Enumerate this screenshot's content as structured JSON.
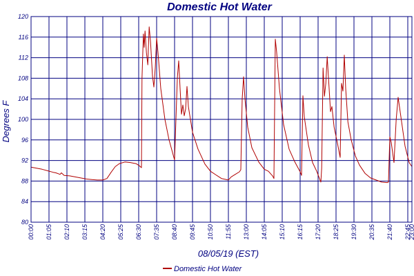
{
  "chart_data": {
    "type": "line",
    "title": "Domestic Hot Water",
    "xlabel": "08/05/19 (EST)",
    "ylabel": "Degrees F",
    "ylim": [
      80,
      120
    ],
    "yticks": [
      "80",
      "84",
      "88",
      "92",
      "96",
      "100",
      "104",
      "108",
      "112",
      "116",
      "120"
    ],
    "xlim_minutes": [
      0,
      1380
    ],
    "xticks": [
      {
        "label": "00:00",
        "minute": 0
      },
      {
        "label": "01:05",
        "minute": 65
      },
      {
        "label": "02:10",
        "minute": 130
      },
      {
        "label": "03:15",
        "minute": 195
      },
      {
        "label": "04:20",
        "minute": 260
      },
      {
        "label": "05:25",
        "minute": 325
      },
      {
        "label": "06:30",
        "minute": 390
      },
      {
        "label": "07:35",
        "minute": 455
      },
      {
        "label": "08:40",
        "minute": 520
      },
      {
        "label": "09:45",
        "minute": 585
      },
      {
        "label": "10:50",
        "minute": 650
      },
      {
        "label": "11:55",
        "minute": 715
      },
      {
        "label": "13:00",
        "minute": 780
      },
      {
        "label": "14:05",
        "minute": 845
      },
      {
        "label": "15:10",
        "minute": 910
      },
      {
        "label": "16:15",
        "minute": 975
      },
      {
        "label": "17:20",
        "minute": 1040
      },
      {
        "label": "18:25",
        "minute": 1105
      },
      {
        "label": "19:30",
        "minute": 1170
      },
      {
        "label": "20:35",
        "minute": 1235
      },
      {
        "label": "21:40",
        "minute": 1300
      },
      {
        "label": "22:45",
        "minute": 1365
      },
      {
        "label": "23:00",
        "minute": 1380
      }
    ],
    "grid": true,
    "legend_position": "bottom-center",
    "series": [
      {
        "name": "Domestic Hot Water",
        "color": "#b00000",
        "points": [
          [
            "00:00",
            90.7
          ],
          [
            "00:20",
            90.5
          ],
          [
            "00:40",
            90.3
          ],
          [
            "01:00",
            90.0
          ],
          [
            "01:20",
            89.7
          ],
          [
            "01:30",
            89.6
          ],
          [
            "01:45",
            89.3
          ],
          [
            "01:50",
            89.6
          ],
          [
            "02:00",
            89.1
          ],
          [
            "02:20",
            89.0
          ],
          [
            "02:40",
            88.8
          ],
          [
            "03:00",
            88.6
          ],
          [
            "03:20",
            88.4
          ],
          [
            "03:40",
            88.3
          ],
          [
            "04:00",
            88.2
          ],
          [
            "04:20",
            88.2
          ],
          [
            "04:35",
            88.5
          ],
          [
            "04:50",
            89.7
          ],
          [
            "05:05",
            90.8
          ],
          [
            "05:20",
            91.4
          ],
          [
            "05:40",
            91.7
          ],
          [
            "06:00",
            91.6
          ],
          [
            "06:20",
            91.4
          ],
          [
            "06:32",
            91.0
          ],
          [
            "06:40",
            90.6
          ],
          [
            "06:42",
            108.0
          ],
          [
            "06:47",
            116.6
          ],
          [
            "06:50",
            114.0
          ],
          [
            "06:53",
            117.2
          ],
          [
            "06:58",
            113.0
          ],
          [
            "07:03",
            110.6
          ],
          [
            "07:08",
            118.0
          ],
          [
            "07:13",
            115.0
          ],
          [
            "07:20",
            108.4
          ],
          [
            "07:25",
            106.3
          ],
          [
            "07:30",
            110.0
          ],
          [
            "07:35",
            115.8
          ],
          [
            "07:40",
            113.0
          ],
          [
            "07:50",
            106.0
          ],
          [
            "08:05",
            100.0
          ],
          [
            "08:20",
            96.0
          ],
          [
            "08:40",
            92.1
          ],
          [
            "08:50",
            108.0
          ],
          [
            "08:55",
            111.4
          ],
          [
            "09:00",
            106.0
          ],
          [
            "09:05",
            101.0
          ],
          [
            "09:10",
            102.8
          ],
          [
            "09:15",
            100.7
          ],
          [
            "09:20",
            102.0
          ],
          [
            "09:25",
            106.4
          ],
          [
            "09:30",
            102.5
          ],
          [
            "09:45",
            97.5
          ],
          [
            "10:05",
            94.2
          ],
          [
            "10:30",
            91.3
          ],
          [
            "10:50",
            89.9
          ],
          [
            "11:10",
            89.2
          ],
          [
            "11:30",
            88.5
          ],
          [
            "11:55",
            88.2
          ],
          [
            "12:05",
            88.8
          ],
          [
            "12:20",
            89.3
          ],
          [
            "12:35",
            89.8
          ],
          [
            "12:40",
            90.2
          ],
          [
            "12:45",
            104.0
          ],
          [
            "12:50",
            108.3
          ],
          [
            "12:55",
            104.0
          ],
          [
            "13:05",
            98.5
          ],
          [
            "13:20",
            94.5
          ],
          [
            "13:45",
            91.7
          ],
          [
            "14:05",
            90.3
          ],
          [
            "14:20",
            89.9
          ],
          [
            "14:35",
            89.0
          ],
          [
            "14:40",
            88.5
          ],
          [
            "14:45",
            115.6
          ],
          [
            "14:50",
            113.0
          ],
          [
            "15:00",
            106.0
          ],
          [
            "15:15",
            99.0
          ],
          [
            "15:35",
            94.2
          ],
          [
            "15:55",
            91.8
          ],
          [
            "16:15",
            89.8
          ],
          [
            "16:20",
            89.1
          ],
          [
            "16:25",
            104.6
          ],
          [
            "16:30",
            100.5
          ],
          [
            "16:45",
            95.0
          ],
          [
            "17:00",
            91.6
          ],
          [
            "17:15",
            89.9
          ],
          [
            "17:30",
            87.8
          ],
          [
            "17:33",
            90.5
          ],
          [
            "17:38",
            110.0
          ],
          [
            "17:43",
            104.5
          ],
          [
            "17:48",
            107.0
          ],
          [
            "17:53",
            112.2
          ],
          [
            "18:00",
            106.0
          ],
          [
            "18:05",
            101.5
          ],
          [
            "18:10",
            102.5
          ],
          [
            "18:18",
            98.5
          ],
          [
            "18:30",
            95.4
          ],
          [
            "18:40",
            92.6
          ],
          [
            "18:45",
            107.0
          ],
          [
            "18:50",
            105.5
          ],
          [
            "18:55",
            112.5
          ],
          [
            "19:00",
            106.0
          ],
          [
            "19:08",
            99.5
          ],
          [
            "19:20",
            96.0
          ],
          [
            "19:35",
            92.9
          ],
          [
            "19:50",
            91.1
          ],
          [
            "20:10",
            89.5
          ],
          [
            "20:30",
            88.6
          ],
          [
            "20:50",
            88.2
          ],
          [
            "21:10",
            87.8
          ],
          [
            "21:30",
            87.7
          ],
          [
            "21:35",
            87.8
          ],
          [
            "21:40",
            96.6
          ],
          [
            "21:45",
            95.5
          ],
          [
            "21:55",
            91.6
          ],
          [
            "22:03",
            100.0
          ],
          [
            "22:10",
            104.3
          ],
          [
            "22:20",
            100.5
          ],
          [
            "22:35",
            94.8
          ],
          [
            "22:50",
            91.6
          ],
          [
            "23:00",
            90.8
          ]
        ]
      }
    ]
  }
}
